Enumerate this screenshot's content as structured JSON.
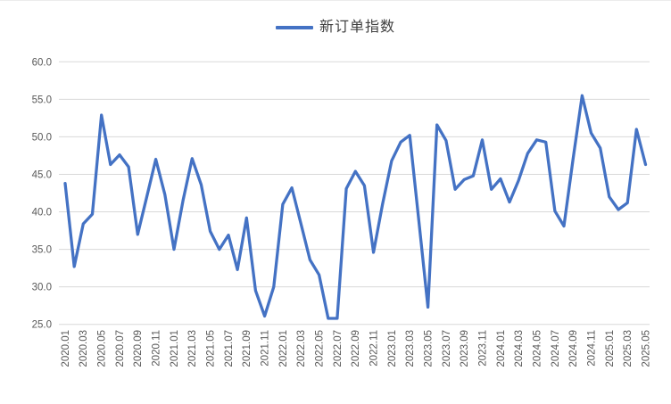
{
  "legend": {
    "label": "新订单指数"
  },
  "colors": {
    "series": "#4472C4",
    "gridline": "#D9D9D9",
    "axis_text": "#595959",
    "legend_text": "#404040",
    "background": "#FFFFFF"
  },
  "chart_data": {
    "type": "line",
    "title": "",
    "xlabel": "",
    "ylabel": "",
    "ylim": [
      25,
      60
    ],
    "y_tick_step": 5,
    "y_tick_labels": [
      "60.0",
      "55.0",
      "50.0",
      "45.0",
      "40.0",
      "35.0",
      "30.0",
      "25.0"
    ],
    "x_tick_every": 2,
    "grid": "horizontal-only",
    "legend_position": "top-center",
    "categories": [
      "2020.01",
      "2020.02",
      "2020.03",
      "2020.04",
      "2020.05",
      "2020.06",
      "2020.07",
      "2020.08",
      "2020.09",
      "2020.10",
      "2020.11",
      "2020.12",
      "2021.01",
      "2021.02",
      "2021.03",
      "2021.04",
      "2021.05",
      "2021.06",
      "2021.07",
      "2021.08",
      "2021.09",
      "2021.10",
      "2021.11",
      "2021.12",
      "2022.01",
      "2022.02",
      "2022.03",
      "2022.04",
      "2022.05",
      "2022.06",
      "2022.07",
      "2022.08",
      "2022.09",
      "2022.10",
      "2022.11",
      "2022.12",
      "2023.01",
      "2023.02",
      "2023.03",
      "2023.04",
      "2023.05",
      "2023.06",
      "2023.07",
      "2023.08",
      "2023.09",
      "2023.10",
      "2023.11",
      "2023.12",
      "2024.01",
      "2024.02",
      "2024.03",
      "2024.04",
      "2024.05",
      "2024.06",
      "2024.07",
      "2024.08",
      "2024.09",
      "2024.10",
      "2024.11",
      "2024.12",
      "2025.01",
      "2025.02",
      "2025.03",
      "2025.04",
      "2025.05"
    ],
    "series": [
      {
        "name": "新订单指数",
        "color": "#4472C4",
        "values": [
          43.8,
          32.7,
          38.4,
          39.7,
          52.9,
          46.3,
          47.6,
          46.0,
          37.0,
          42.0,
          47.0,
          42.3,
          35.0,
          41.5,
          47.1,
          43.6,
          37.4,
          35.0,
          36.9,
          32.3,
          39.2,
          29.5,
          26.1,
          30.0,
          41.0,
          43.2,
          38.4,
          33.6,
          31.6,
          25.8,
          25.8,
          43.1,
          45.4,
          43.5,
          34.6,
          41.0,
          46.8,
          49.3,
          50.2,
          38.8,
          27.3,
          51.6,
          49.5,
          43.0,
          44.3,
          44.8,
          49.6,
          43.0,
          44.4,
          41.3,
          44.2,
          47.8,
          49.6,
          49.3,
          40.1,
          38.1,
          47.0,
          55.5,
          50.5,
          48.5,
          42.0,
          40.3,
          41.2,
          51.0,
          46.3
        ]
      }
    ]
  }
}
